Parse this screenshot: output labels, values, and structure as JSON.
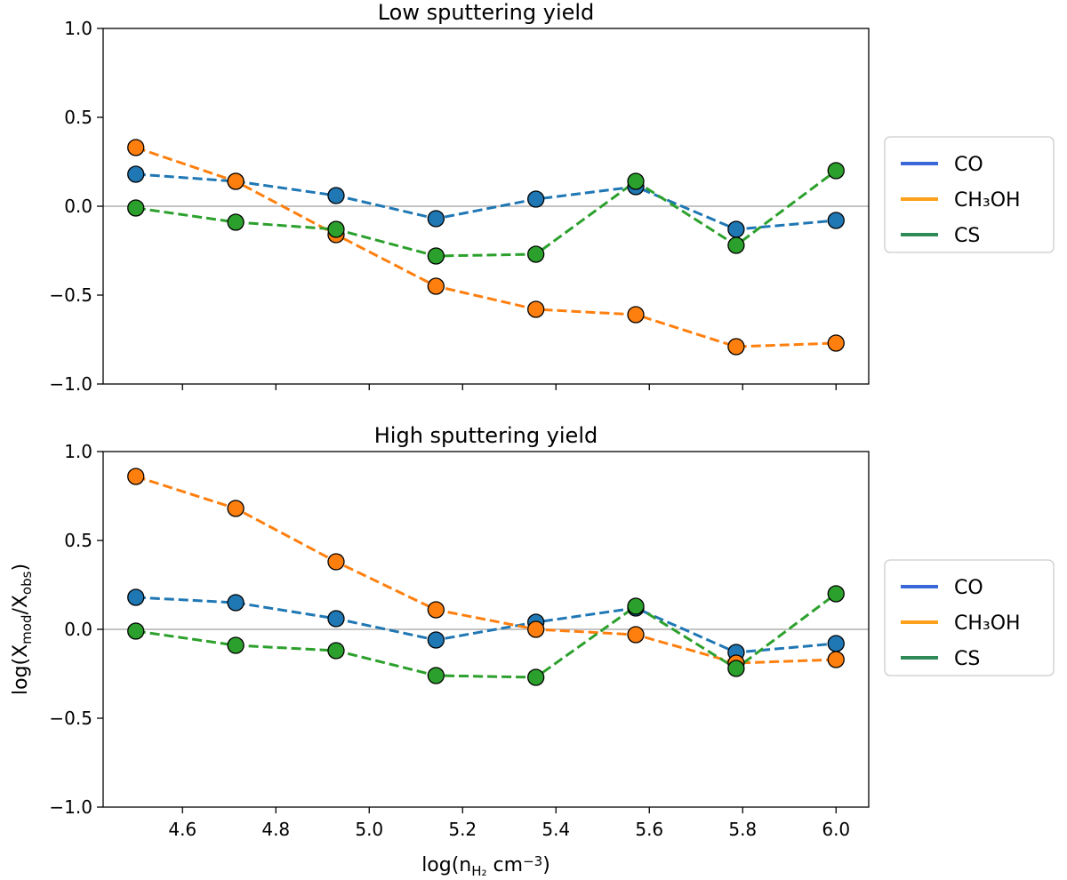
{
  "chart_data": [
    {
      "type": "line",
      "title": "Low sputtering yield",
      "xlabel": "",
      "ylabel": "",
      "xlim": [
        4.43,
        6.07
      ],
      "ylim": [
        -1.0,
        1.0
      ],
      "x": [
        4.5,
        4.714,
        4.929,
        5.143,
        5.357,
        5.571,
        5.786,
        6.0
      ],
      "xticks": [
        4.6,
        4.8,
        5.0,
        5.2,
        5.4,
        5.6,
        5.8,
        6.0
      ],
      "yticks": [
        -1.0,
        -0.5,
        0.0,
        0.5,
        1.0
      ],
      "ytick_labels": [
        "−1.0",
        "−0.5",
        "0.0",
        "0.5",
        "1.0"
      ],
      "show_xtick_labels": false,
      "reference_line": 0.0,
      "grid": false,
      "legend_position": "right, outside plot",
      "series": [
        {
          "name": "CO",
          "color": "#1f77b4",
          "legend_color": "#3a68d8",
          "values": [
            0.18,
            0.14,
            0.06,
            -0.07,
            0.04,
            0.11,
            -0.13,
            -0.08
          ]
        },
        {
          "name": "CH₃OH",
          "color": "#ff7f0e",
          "legend_color": "#ffa11a",
          "values": [
            0.33,
            0.14,
            -0.16,
            -0.45,
            -0.58,
            -0.61,
            -0.79,
            -0.77
          ]
        },
        {
          "name": "CS",
          "color": "#2ca02c",
          "legend_color": "#2e8b57",
          "values": [
            -0.01,
            -0.09,
            -0.13,
            -0.28,
            -0.27,
            0.14,
            -0.22,
            0.2
          ]
        }
      ]
    },
    {
      "type": "line",
      "title": "High sputtering yield",
      "xlabel": "log(n",
      "xlabel_sub": "H₂",
      "xlabel_tail": " cm",
      "xlabel_sup": "−3",
      "xlabel_end": ")",
      "ylabel": "log(X",
      "ylabel_sub1": "mod",
      "ylabel_mid": "/X",
      "ylabel_sub2": "obs",
      "ylabel_end": ")",
      "xlim": [
        4.43,
        6.07
      ],
      "ylim": [
        -1.0,
        1.0
      ],
      "x": [
        4.5,
        4.714,
        4.929,
        5.143,
        5.357,
        5.571,
        5.786,
        6.0
      ],
      "xticks": [
        4.6,
        4.8,
        5.0,
        5.2,
        5.4,
        5.6,
        5.8,
        6.0
      ],
      "xtick_labels": [
        "4.6",
        "4.8",
        "5.0",
        "5.2",
        "5.4",
        "5.6",
        "5.8",
        "6.0"
      ],
      "yticks": [
        -1.0,
        -0.5,
        0.0,
        0.5,
        1.0
      ],
      "ytick_labels": [
        "−1.0",
        "−0.5",
        "0.0",
        "0.5",
        "1.0"
      ],
      "show_xtick_labels": true,
      "reference_line": 0.0,
      "grid": false,
      "legend_position": "right, outside plot",
      "series": [
        {
          "name": "CO",
          "color": "#1f77b4",
          "legend_color": "#3a68d8",
          "values": [
            0.18,
            0.15,
            0.06,
            -0.06,
            0.04,
            0.12,
            -0.13,
            -0.08
          ]
        },
        {
          "name": "CH₃OH",
          "color": "#ff7f0e",
          "legend_color": "#ffa11a",
          "values": [
            0.86,
            0.68,
            0.38,
            0.11,
            0.0,
            -0.03,
            -0.19,
            -0.17
          ]
        },
        {
          "name": "CS",
          "color": "#2ca02c",
          "legend_color": "#2e8b57",
          "values": [
            -0.01,
            -0.09,
            -0.12,
            -0.26,
            -0.27,
            0.13,
            -0.22,
            0.2
          ]
        }
      ]
    }
  ]
}
